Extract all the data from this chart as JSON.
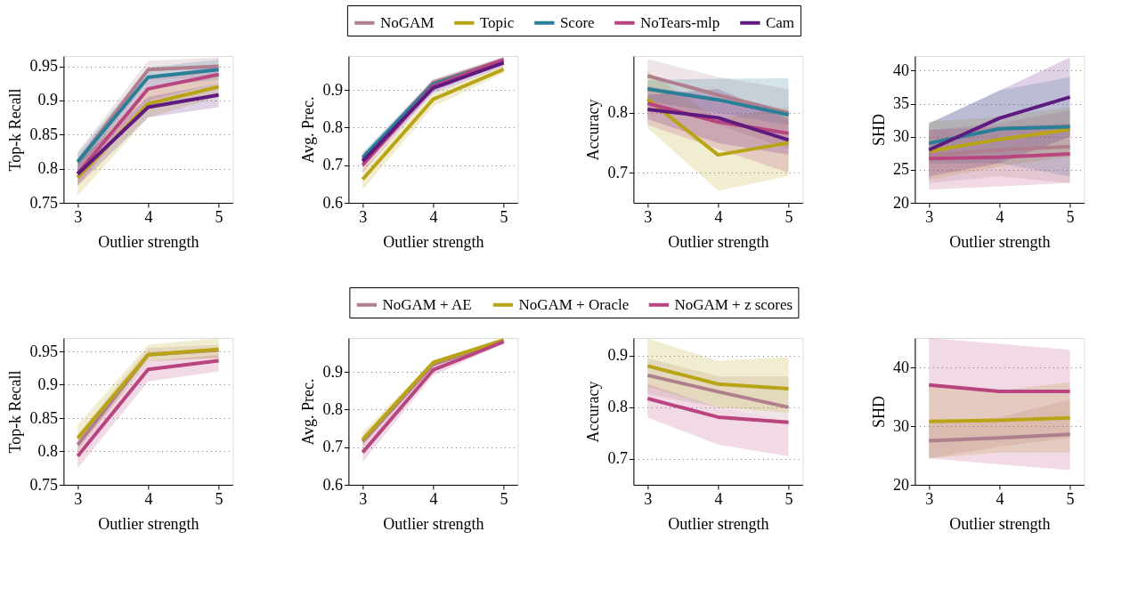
{
  "chart_data": [
    {
      "type": "line",
      "xlabel": "Outlier strength",
      "ylabel": "Top-k Recall",
      "x": [
        3,
        4,
        5
      ],
      "xlim": [
        2.8,
        5.2
      ],
      "xticks": [
        3,
        4,
        5
      ],
      "ylim": [
        0.75,
        0.965
      ],
      "yticks": [
        0.75,
        0.8,
        0.85,
        0.9,
        0.95
      ],
      "grid": "y",
      "legend": "top",
      "series": [
        {
          "name": "NoGAM",
          "color": "#b07f8e",
          "values": [
            0.81,
            0.945,
            0.95
          ],
          "lower": [
            0.795,
            0.93,
            0.935
          ],
          "upper": [
            0.825,
            0.958,
            0.963
          ]
        },
        {
          "name": "Topic",
          "color": "#b9a416",
          "values": [
            0.787,
            0.895,
            0.92
          ],
          "lower": [
            0.76,
            0.875,
            0.905
          ],
          "upper": [
            0.81,
            0.915,
            0.935
          ]
        },
        {
          "name": "Score",
          "color": "#2a7f98",
          "values": [
            0.81,
            0.934,
            0.945
          ],
          "lower": [
            0.8,
            0.92,
            0.93
          ],
          "upper": [
            0.822,
            0.948,
            0.96
          ]
        },
        {
          "name": "NoTears-mlp",
          "color": "#b8457f",
          "values": [
            0.793,
            0.917,
            0.938
          ],
          "lower": [
            0.775,
            0.9,
            0.925
          ],
          "upper": [
            0.81,
            0.935,
            0.95
          ]
        },
        {
          "name": "Cam",
          "color": "#5f1a80",
          "values": [
            0.792,
            0.89,
            0.908
          ],
          "lower": [
            0.775,
            0.875,
            0.89
          ],
          "upper": [
            0.81,
            0.905,
            0.925
          ]
        }
      ]
    },
    {
      "type": "line",
      "xlabel": "Outlier strength",
      "ylabel": "Avg. Prec.",
      "x": [
        3,
        4,
        5
      ],
      "xlim": [
        2.8,
        5.2
      ],
      "xticks": [
        3,
        4,
        5
      ],
      "ylim": [
        0.6,
        0.99
      ],
      "yticks": [
        0.6,
        0.7,
        0.8,
        0.9
      ],
      "grid": "y",
      "series": [
        {
          "color": "#b07f8e",
          "values": [
            0.715,
            0.92,
            0.98
          ],
          "lower": [
            0.7,
            0.905,
            0.97
          ],
          "upper": [
            0.73,
            0.93,
            0.988
          ]
        },
        {
          "color": "#b9a416",
          "values": [
            0.662,
            0.875,
            0.955
          ],
          "lower": [
            0.635,
            0.855,
            0.945
          ],
          "upper": [
            0.69,
            0.89,
            0.965
          ]
        },
        {
          "color": "#2a7f98",
          "values": [
            0.72,
            0.915,
            0.978
          ],
          "lower": [
            0.705,
            0.9,
            0.97
          ],
          "upper": [
            0.735,
            0.925,
            0.986
          ]
        },
        {
          "color": "#b8457f",
          "values": [
            0.7,
            0.91,
            0.98
          ],
          "lower": [
            0.68,
            0.895,
            0.97
          ],
          "upper": [
            0.72,
            0.92,
            0.988
          ]
        },
        {
          "color": "#5f1a80",
          "values": [
            0.71,
            0.905,
            0.972
          ],
          "lower": [
            0.695,
            0.89,
            0.962
          ],
          "upper": [
            0.725,
            0.915,
            0.98
          ]
        }
      ]
    },
    {
      "type": "line",
      "xlabel": "Outlier strength",
      "ylabel": "Accuracy",
      "x": [
        3,
        4,
        5
      ],
      "xlim": [
        2.8,
        5.2
      ],
      "xticks": [
        3,
        4,
        5
      ],
      "ylim": [
        0.65,
        0.895
      ],
      "yticks": [
        0.7,
        0.8
      ],
      "grid": "y",
      "series": [
        {
          "color": "#b07f8e",
          "values": [
            0.862,
            0.83,
            0.8
          ],
          "lower": [
            0.82,
            0.78,
            0.74
          ],
          "upper": [
            0.89,
            0.86,
            0.84
          ]
        },
        {
          "color": "#b9a416",
          "values": [
            0.823,
            0.73,
            0.75
          ],
          "lower": [
            0.775,
            0.67,
            0.695
          ],
          "upper": [
            0.87,
            0.79,
            0.81
          ]
        },
        {
          "color": "#2a7f98",
          "values": [
            0.84,
            0.822,
            0.797
          ],
          "lower": [
            0.82,
            0.8,
            0.78
          ],
          "upper": [
            0.855,
            0.857,
            0.858
          ]
        },
        {
          "color": "#b8457f",
          "values": [
            0.816,
            0.785,
            0.766
          ],
          "lower": [
            0.78,
            0.74,
            0.7
          ],
          "upper": [
            0.845,
            0.825,
            0.8
          ]
        },
        {
          "color": "#5f1a80",
          "values": [
            0.806,
            0.792,
            0.755
          ],
          "lower": [
            0.79,
            0.75,
            0.73
          ],
          "upper": [
            0.83,
            0.84,
            0.79
          ]
        }
      ]
    },
    {
      "type": "line",
      "xlabel": "Outlier strength",
      "ylabel": "SHD",
      "x": [
        3,
        4,
        5
      ],
      "xlim": [
        2.8,
        5.2
      ],
      "xticks": [
        3,
        4,
        5
      ],
      "ylim": [
        20,
        42.2
      ],
      "yticks": [
        20,
        25,
        30,
        35,
        40
      ],
      "grid": "y",
      "series": [
        {
          "color": "#b07f8e",
          "values": [
            27.2,
            28,
            28.5
          ],
          "lower": [
            23,
            24,
            23
          ],
          "upper": [
            31,
            32,
            34
          ]
        },
        {
          "color": "#b9a416",
          "values": [
            27.8,
            29.6,
            31.1
          ],
          "lower": [
            23.5,
            25.5,
            27
          ],
          "upper": [
            32.3,
            33,
            34.5
          ]
        },
        {
          "color": "#2a7f98",
          "values": [
            29,
            31.2,
            31.5
          ],
          "lower": [
            26,
            26,
            24
          ],
          "upper": [
            32,
            37,
            39
          ]
        },
        {
          "color": "#b8457f",
          "values": [
            26.7,
            26.9,
            27.4
          ],
          "lower": [
            22,
            22.5,
            23
          ],
          "upper": [
            31,
            31.5,
            32
          ]
        },
        {
          "color": "#5f1a80",
          "values": [
            28,
            32.8,
            36
          ],
          "lower": [
            24,
            26,
            30
          ],
          "upper": [
            32,
            37,
            42
          ]
        }
      ]
    },
    {
      "type": "line",
      "xlabel": "Outlier strength",
      "ylabel": "Top-k Recall",
      "x": [
        3,
        4,
        5
      ],
      "xlim": [
        2.8,
        5.2
      ],
      "xticks": [
        3,
        4,
        5
      ],
      "ylim": [
        0.75,
        0.97
      ],
      "yticks": [
        0.75,
        0.8,
        0.85,
        0.9,
        0.95
      ],
      "grid": "y",
      "legend": "top",
      "series": [
        {
          "name": "NoGAM + AE",
          "color": "#b07f8e",
          "values": [
            0.81,
            0.945,
            0.952
          ],
          "lower": [
            0.8,
            0.935,
            0.94
          ],
          "upper": [
            0.825,
            0.955,
            0.96
          ]
        },
        {
          "name": "NoGAM + Oracle",
          "color": "#b9a416",
          "values": [
            0.82,
            0.945,
            0.953
          ],
          "lower": [
            0.805,
            0.935,
            0.94
          ],
          "upper": [
            0.84,
            0.96,
            0.97
          ]
        },
        {
          "name": "NoGAM + z scores",
          "color": "#b8457f",
          "values": [
            0.793,
            0.923,
            0.936
          ],
          "lower": [
            0.775,
            0.905,
            0.92
          ],
          "upper": [
            0.81,
            0.935,
            0.945
          ]
        }
      ]
    },
    {
      "type": "line",
      "xlabel": "Outlier strength",
      "ylabel": "Avg. Prec.",
      "x": [
        3,
        4,
        5
      ],
      "xlim": [
        2.8,
        5.2
      ],
      "xticks": [
        3,
        4,
        5
      ],
      "ylim": [
        0.6,
        0.99
      ],
      "yticks": [
        0.6,
        0.7,
        0.8,
        0.9
      ],
      "grid": "y",
      "series": [
        {
          "color": "#b07f8e",
          "values": [
            0.715,
            0.92,
            0.983
          ],
          "lower": [
            0.7,
            0.91,
            0.978
          ],
          "upper": [
            0.73,
            0.93,
            0.988
          ]
        },
        {
          "color": "#b9a416",
          "values": [
            0.72,
            0.925,
            0.985
          ],
          "lower": [
            0.705,
            0.915,
            0.978
          ],
          "upper": [
            0.74,
            0.93,
            0.989
          ]
        },
        {
          "color": "#b8457f",
          "values": [
            0.686,
            0.905,
            0.98
          ],
          "lower": [
            0.66,
            0.89,
            0.975
          ],
          "upper": [
            0.715,
            0.92,
            0.987
          ]
        }
      ]
    },
    {
      "type": "line",
      "xlabel": "Outlier strength",
      "ylabel": "Accuracy",
      "x": [
        3,
        4,
        5
      ],
      "xlim": [
        2.8,
        5.2
      ],
      "xticks": [
        3,
        4,
        5
      ],
      "ylim": [
        0.65,
        0.934
      ],
      "yticks": [
        0.7,
        0.8,
        0.9
      ],
      "grid": "y",
      "series": [
        {
          "color": "#b07f8e",
          "values": [
            0.862,
            0.83,
            0.8
          ],
          "lower": [
            0.825,
            0.8,
            0.775
          ],
          "upper": [
            0.895,
            0.86,
            0.86
          ]
        },
        {
          "color": "#b9a416",
          "values": [
            0.88,
            0.845,
            0.836
          ],
          "lower": [
            0.84,
            0.8,
            0.79
          ],
          "upper": [
            0.933,
            0.89,
            0.897
          ]
        },
        {
          "color": "#b8457f",
          "values": [
            0.817,
            0.781,
            0.771
          ],
          "lower": [
            0.78,
            0.728,
            0.705
          ],
          "upper": [
            0.845,
            0.8,
            0.775
          ]
        }
      ]
    },
    {
      "type": "line",
      "xlabel": "Outlier strength",
      "ylabel": "SHD",
      "x": [
        3,
        4,
        5
      ],
      "xlim": [
        2.8,
        5.2
      ],
      "xticks": [
        3,
        4,
        5
      ],
      "ylim": [
        20,
        45
      ],
      "yticks": [
        20,
        30,
        40
      ],
      "grid": "y",
      "series": [
        {
          "color": "#b07f8e",
          "values": [
            27.5,
            28,
            28.6
          ],
          "lower": [
            24.5,
            26.5,
            28
          ],
          "upper": [
            30.5,
            31.5,
            34.5
          ]
        },
        {
          "color": "#b9a416",
          "values": [
            30.8,
            31,
            31.4
          ],
          "lower": [
            24.5,
            25.5,
            25.5
          ],
          "upper": [
            37,
            36,
            37.5
          ]
        },
        {
          "color": "#b8457f",
          "values": [
            37,
            35.9,
            35.9
          ],
          "lower": [
            24.5,
            23.5,
            22.5
          ],
          "upper": [
            45,
            44,
            43
          ]
        }
      ]
    }
  ]
}
